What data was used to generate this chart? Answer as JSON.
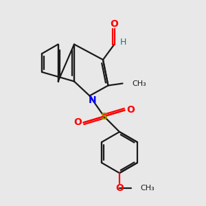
{
  "bg_color": "#e8e8e8",
  "bond_color": "#1a1a1a",
  "N_color": "#0000ff",
  "O_color": "#ff0000",
  "S_color": "#999900",
  "H_color": "#008080",
  "line_width": 1.6,
  "figsize": [
    3.0,
    3.0
  ],
  "dpi": 100,
  "xlim": [
    0,
    10
  ],
  "ylim": [
    0,
    10
  ],
  "methyl_label": "CH₃",
  "methoxy_label": "OCH₃"
}
